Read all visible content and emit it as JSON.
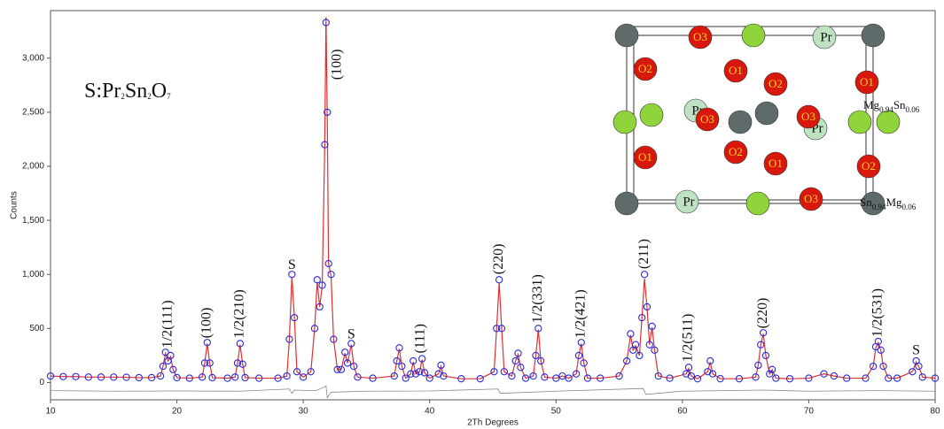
{
  "chart_data": {
    "type": "line",
    "title_parts": [
      "S:Pr",
      "2",
      "Sn",
      "2",
      "O",
      "7"
    ],
    "x_label": "2Th Degrees",
    "y_label": "Counts",
    "x": [
      10,
      11,
      12,
      13,
      14,
      15,
      16,
      17,
      18,
      18.7,
      18.9,
      19.1,
      19.3,
      19.5,
      19.7,
      20,
      21,
      22,
      22.2,
      22.4,
      22.6,
      22.8,
      24,
      24.6,
      24.8,
      25,
      25.2,
      25.4,
      26.5,
      28,
      28.7,
      28.9,
      29.1,
      29.3,
      29.5,
      30,
      30.6,
      30.9,
      31.1,
      31.3,
      31.5,
      31.7,
      31.8,
      31.9,
      32,
      32.2,
      32.4,
      32.7,
      33,
      33.3,
      33.5,
      33.8,
      34,
      34.3,
      35.5,
      37.2,
      37.4,
      37.6,
      37.8,
      38.1,
      38.5,
      38.7,
      38.9,
      39.2,
      39.4,
      39.6,
      40,
      40.7,
      40.9,
      41.1,
      42.5,
      44,
      45.1,
      45.3,
      45.5,
      45.7,
      45.9,
      46.5,
      46.8,
      47,
      47.2,
      47.6,
      48.2,
      48.4,
      48.6,
      48.8,
      49.1,
      50,
      50.5,
      51,
      51.6,
      51.8,
      52,
      52.2,
      52.5,
      53.5,
      55,
      55.6,
      55.9,
      56.1,
      56.3,
      56.6,
      56.8,
      57,
      57.2,
      57.4,
      57.6,
      57.8,
      58.1,
      59,
      60.3,
      60.5,
      60.7,
      61.2,
      62,
      62.2,
      62.4,
      63,
      64.5,
      65.8,
      66,
      66.2,
      66.4,
      66.6,
      66.9,
      67.1,
      67.4,
      68.5,
      70,
      71.2,
      72,
      73,
      74.5,
      75.1,
      75.3,
      75.5,
      75.7,
      75.9,
      76.3,
      77,
      78.2,
      78.5,
      78.7,
      79,
      80
    ],
    "series": [
      {
        "kind": "markers",
        "color": "#2b2bd9",
        "values": [
          60,
          55,
          55,
          50,
          50,
          50,
          48,
          45,
          45,
          60,
          150,
          280,
          200,
          250,
          120,
          45,
          40,
          50,
          180,
          370,
          180,
          45,
          40,
          50,
          180,
          360,
          170,
          45,
          40,
          40,
          60,
          400,
          1000,
          600,
          100,
          50,
          100,
          500,
          950,
          700,
          900,
          2200,
          3330,
          2500,
          1100,
          1000,
          400,
          120,
          120,
          280,
          180,
          360,
          150,
          50,
          40,
          60,
          200,
          320,
          150,
          40,
          80,
          200,
          80,
          100,
          220,
          90,
          40,
          80,
          160,
          60,
          35,
          35,
          100,
          500,
          950,
          500,
          100,
          60,
          200,
          270,
          140,
          40,
          60,
          250,
          500,
          200,
          50,
          40,
          60,
          40,
          80,
          250,
          370,
          180,
          40,
          40,
          60,
          200,
          450,
          300,
          350,
          250,
          600,
          1000,
          700,
          350,
          520,
          300,
          60,
          40,
          80,
          140,
          60,
          35,
          100,
          200,
          80,
          35,
          35,
          50,
          160,
          350,
          460,
          250,
          80,
          120,
          40,
          35,
          40,
          80,
          60,
          40,
          40,
          150,
          330,
          380,
          300,
          150,
          40,
          40,
          100,
          200,
          150,
          50,
          40
        ]
      },
      {
        "kind": "line",
        "color": "#e03030",
        "values": [
          60,
          55,
          55,
          50,
          50,
          50,
          48,
          45,
          45,
          60,
          150,
          270,
          200,
          240,
          120,
          45,
          40,
          50,
          180,
          360,
          180,
          45,
          40,
          50,
          180,
          350,
          170,
          45,
          40,
          40,
          60,
          400,
          980,
          600,
          100,
          50,
          100,
          500,
          930,
          700,
          900,
          2200,
          3380,
          2450,
          1100,
          980,
          400,
          120,
          120,
          270,
          180,
          350,
          150,
          50,
          40,
          60,
          200,
          310,
          150,
          40,
          80,
          190,
          80,
          100,
          210,
          90,
          40,
          80,
          150,
          60,
          35,
          35,
          100,
          500,
          920,
          500,
          100,
          60,
          200,
          260,
          140,
          40,
          60,
          250,
          490,
          200,
          50,
          40,
          60,
          40,
          80,
          250,
          360,
          180,
          40,
          40,
          60,
          200,
          440,
          300,
          340,
          250,
          600,
          960,
          700,
          350,
          510,
          300,
          60,
          40,
          80,
          130,
          60,
          35,
          100,
          190,
          80,
          35,
          35,
          50,
          160,
          350,
          450,
          250,
          80,
          120,
          40,
          35,
          40,
          80,
          60,
          40,
          40,
          150,
          320,
          370,
          300,
          150,
          40,
          40,
          100,
          190,
          150,
          50,
          40
        ]
      },
      {
        "kind": "line",
        "color": "#888888",
        "x": [
          10,
          15,
          20,
          25,
          28.9,
          29.1,
          29.3,
          31,
          31.7,
          31.8,
          31.9,
          32.2,
          35,
          40,
          45.4,
          45.6,
          50,
          56.9,
          57.1,
          60,
          66.4,
          70,
          75.5,
          80
        ],
        "values": [
          -75,
          -80,
          -78,
          -80,
          -60,
          -100,
          -70,
          -75,
          -40,
          -30,
          -140,
          -90,
          -80,
          -78,
          -60,
          -100,
          -80,
          -55,
          -110,
          -80,
          -70,
          -80,
          -75,
          -80
        ]
      }
    ],
    "xlim": [
      10,
      80
    ],
    "xticks": [
      10,
      20,
      30,
      40,
      50,
      60,
      70,
      80
    ],
    "ylim": [
      -160,
      3440
    ],
    "yticks": [
      0,
      500,
      {
        "value": 1000,
        "label": "1,000"
      },
      {
        "value": 1500,
        "label": "1,500"
      },
      {
        "value": 2000,
        "label": "2,000"
      },
      {
        "value": 2500,
        "label": "2,500"
      },
      {
        "value": 3000,
        "label": "3,000"
      }
    ],
    "annotations": [
      {
        "text": "1/2(111)",
        "x": 19.3,
        "y": 320,
        "rotated": true
      },
      {
        "text": "(100)",
        "x": 22.4,
        "y": 410,
        "rotated": true
      },
      {
        "text": "1/2(210)",
        "x": 25,
        "y": 410,
        "rotated": true
      },
      {
        "text": "S",
        "x": 29.1,
        "y": 1080,
        "rotated": false
      },
      {
        "text": "(100)",
        "x": 32.7,
        "y": 2800,
        "rotated": true
      },
      {
        "text": "S",
        "x": 33.8,
        "y": 440,
        "rotated": false
      },
      {
        "text": "(111)",
        "x": 39.3,
        "y": 270,
        "rotated": true
      },
      {
        "text": "(220)",
        "x": 45.5,
        "y": 1000,
        "rotated": true
      },
      {
        "text": "1/2(331)",
        "x": 48.6,
        "y": 550,
        "rotated": true
      },
      {
        "text": "1/2(421)",
        "x": 52,
        "y": 410,
        "rotated": true
      },
      {
        "text": "(211)",
        "x": 57,
        "y": 1050,
        "rotated": true
      },
      {
        "text": "1/2(511)",
        "x": 60.5,
        "y": 190,
        "rotated": true
      },
      {
        "text": "(220)",
        "x": 66.4,
        "y": 500,
        "rotated": true
      },
      {
        "text": "1/2(531)",
        "x": 75.5,
        "y": 420,
        "rotated": true
      },
      {
        "text": "S",
        "x": 78.5,
        "y": 290,
        "rotated": false
      }
    ],
    "inset": {
      "oxygen_labels": [
        "O3",
        "O2",
        "O1",
        "O2",
        "O1",
        "O3",
        "O3",
        "O1",
        "O2",
        "O1",
        "O2",
        "O3"
      ],
      "pr_labels": [
        "Pr",
        "Pr",
        "Pr",
        "Pr"
      ],
      "site_a": [
        "Mg",
        "0.94",
        "Sn",
        "0.06"
      ],
      "site_b": [
        "Sn",
        "0.94",
        "Mg",
        "0.06"
      ]
    }
  }
}
